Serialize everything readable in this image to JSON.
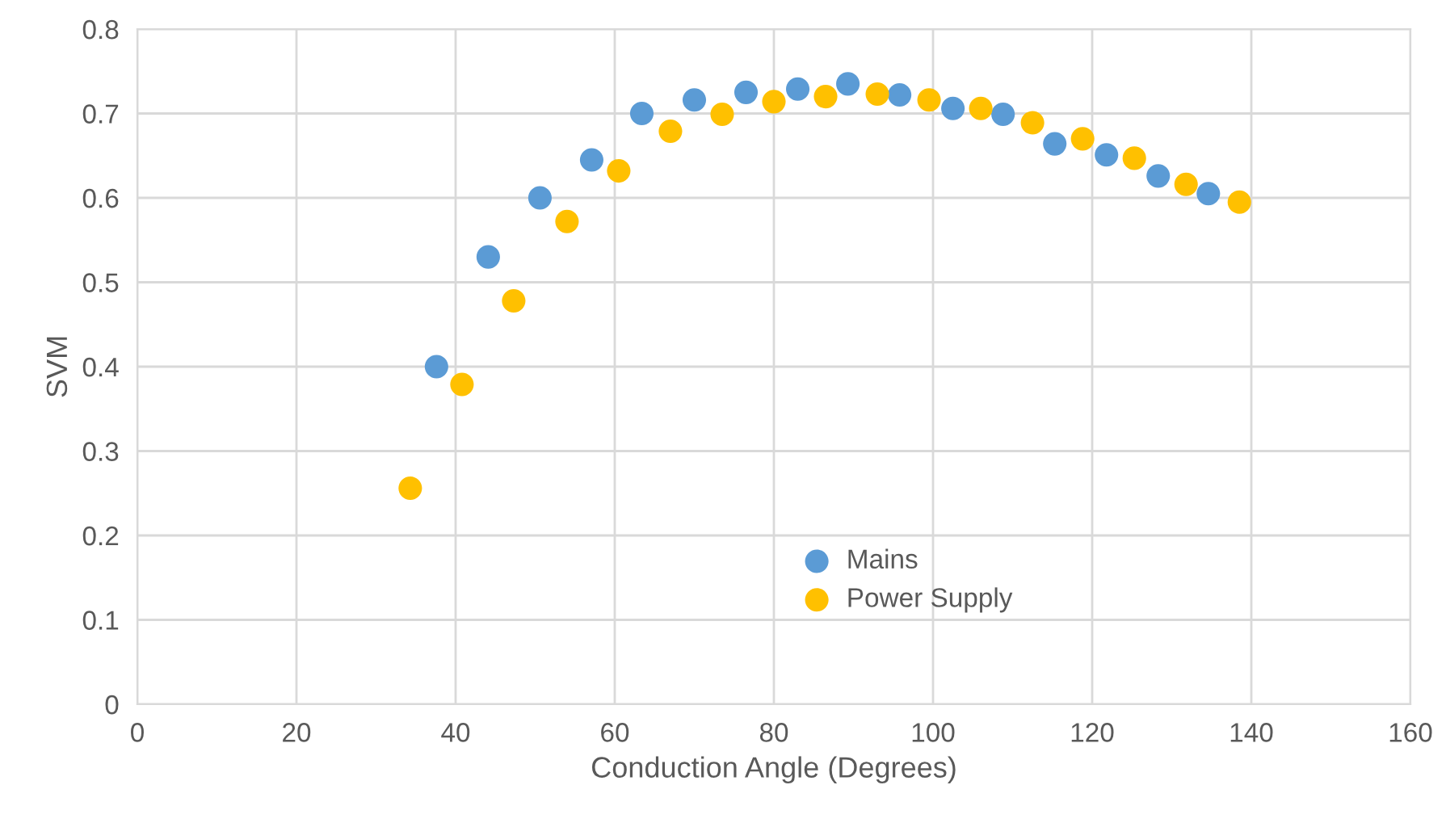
{
  "chart_data": {
    "type": "scatter",
    "xlabel": "Conduction Angle (Degrees)",
    "ylabel": "SVM",
    "xlim": [
      0,
      160
    ],
    "xticks": [
      0,
      20,
      40,
      60,
      80,
      100,
      120,
      140,
      160
    ],
    "ylim": [
      0,
      0.8
    ],
    "yticks": [
      0,
      0.1,
      0.2,
      0.3,
      0.4,
      0.5,
      0.6,
      0.7,
      0.8
    ],
    "grid": true,
    "legend": "bottom",
    "marker": "circle",
    "series": [
      {
        "name": "Mains",
        "color": "#5b9bd5",
        "x": [
          37.6,
          44.1,
          50.6,
          57.1,
          63.4,
          70.0,
          76.5,
          83.0,
          89.3,
          95.8,
          102.5,
          108.8,
          115.3,
          121.8,
          128.3,
          134.6
        ],
        "values": [
          0.4,
          0.53,
          0.6,
          0.645,
          0.7,
          0.716,
          0.725,
          0.729,
          0.735,
          0.722,
          0.706,
          0.699,
          0.664,
          0.651,
          0.626,
          0.605
        ]
      },
      {
        "name": "Power Supply",
        "color": "#ffc000",
        "x": [
          34.3,
          40.8,
          47.3,
          54.0,
          60.5,
          67.0,
          73.5,
          80.0,
          86.5,
          93.0,
          99.5,
          106.0,
          112.5,
          118.8,
          125.3,
          131.8,
          138.5
        ],
        "values": [
          0.256,
          0.379,
          0.478,
          0.572,
          0.632,
          0.679,
          0.699,
          0.714,
          0.72,
          0.723,
          0.716,
          0.706,
          0.689,
          0.67,
          0.647,
          0.616,
          0.595
        ]
      }
    ]
  }
}
